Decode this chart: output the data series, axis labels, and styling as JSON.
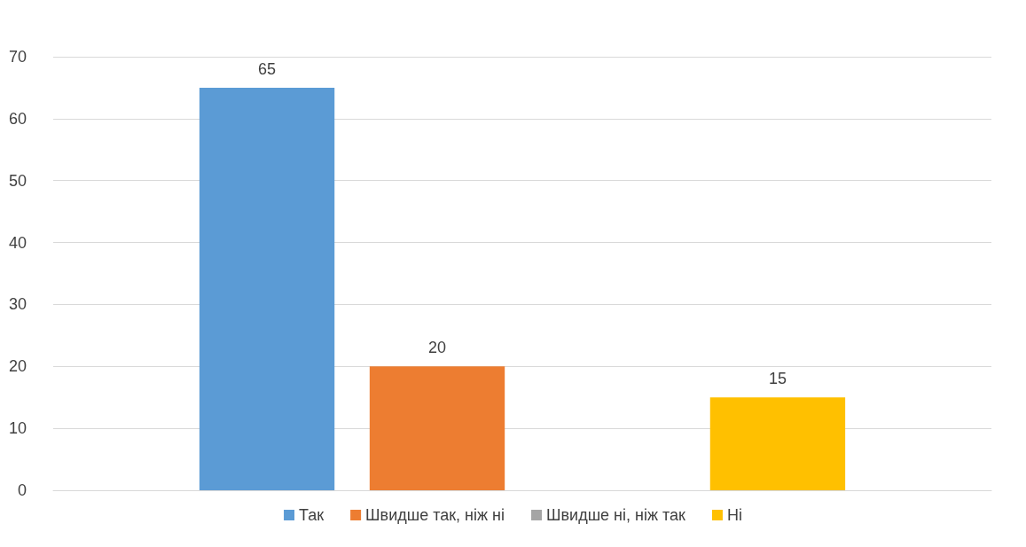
{
  "chart_data": {
    "type": "bar",
    "categories": [
      null
    ],
    "series": [
      {
        "name": "Так",
        "color": "#5b9bd5",
        "values": [
          65
        ]
      },
      {
        "name": "Швидше так, ніж ні",
        "color": "#ed7d31",
        "values": [
          20
        ]
      },
      {
        "name": "Швидше ні, ніж так",
        "color": "#a5a5a5",
        "values": [
          null
        ]
      },
      {
        "name": "Ні",
        "color": "#ffc000",
        "values": [
          15
        ]
      }
    ],
    "ylim": [
      0,
      70
    ],
    "yticks": [
      0,
      10,
      20,
      30,
      40,
      50,
      60,
      70
    ],
    "grid": "y",
    "legend": "bottom",
    "data_labels": true
  }
}
